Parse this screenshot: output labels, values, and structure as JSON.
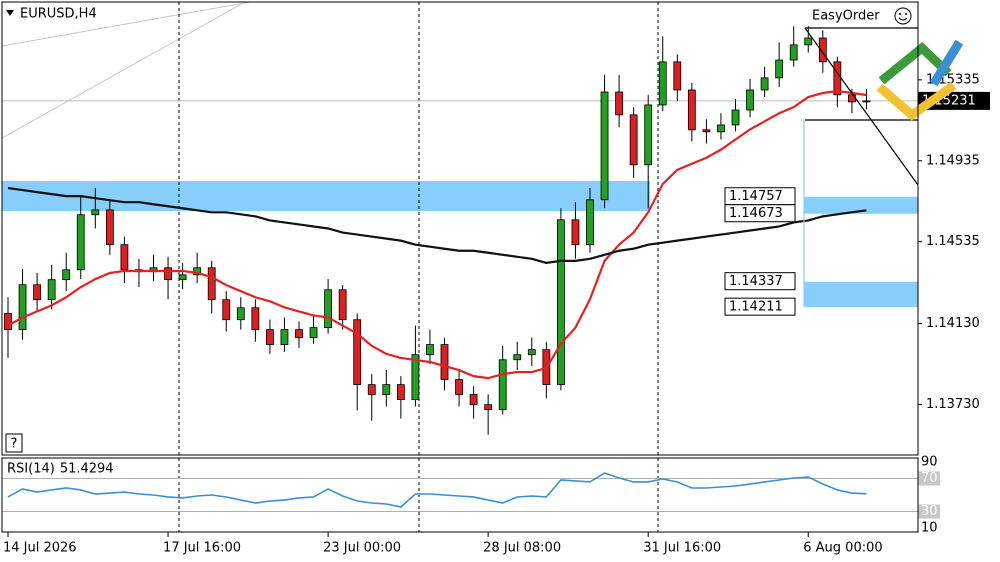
{
  "window": {
    "easy_order": "EasyOrder",
    "help": "?"
  },
  "chart_data": [
    {
      "type": "candlestick",
      "title": "EURUSD,H4",
      "categories": [
        "14 Jul 2026",
        null,
        null,
        null,
        null,
        null,
        null,
        null,
        null,
        null,
        null,
        "17 Jul 16:00",
        null,
        null,
        null,
        null,
        null,
        null,
        null,
        null,
        null,
        null,
        "23 Jul 00:00",
        null,
        null,
        null,
        null,
        null,
        null,
        null,
        null,
        null,
        null,
        "28 Jul 08:00",
        null,
        null,
        null,
        null,
        null,
        null,
        null,
        null,
        null,
        null,
        "31 Jul 16:00",
        null,
        null,
        null,
        null,
        null,
        null,
        null,
        null,
        null,
        null,
        "6 Aug 00:00",
        null,
        null,
        null,
        null
      ],
      "open": [
        1.1418,
        1.141,
        1.14322,
        1.14248,
        1.14347,
        1.14396,
        1.14668,
        1.14692,
        1.1452,
        1.14396,
        1.14386,
        1.14406,
        1.14347,
        1.14371,
        1.14406,
        1.14248,
        1.14149,
        1.14208,
        1.141,
        1.14026,
        1.141,
        1.1406,
        1.1411,
        1.14297,
        1.14149,
        1.13828,
        1.13779,
        1.13828,
        1.13754,
        1.13976,
        1.14026,
        1.13853,
        1.13779,
        1.13729,
        1.13704,
        1.13951,
        1.13976,
        1.14001,
        1.13828,
        1.14643,
        1.1452,
        1.14742,
        1.15275,
        1.15162,
        1.14915,
        1.15211,
        1.15424,
        1.15285,
        1.15088,
        1.15078,
        1.15112,
        1.15186,
        1.15285,
        1.15345,
        1.15433,
        1.15508,
        1.15542,
        1.15424,
        1.15261,
        1.15226
      ],
      "high": [
        1.1426,
        1.144,
        1.1438,
        1.1442,
        1.1448,
        1.1476,
        1.148,
        1.1474,
        1.1456,
        1.1445,
        1.1447,
        1.1446,
        1.1443,
        1.1448,
        1.1444,
        1.1429,
        1.1426,
        1.1425,
        1.1415,
        1.1416,
        1.1414,
        1.1417,
        1.1435,
        1.1432,
        1.1418,
        1.1388,
        1.139,
        1.1387,
        1.1412,
        1.141,
        1.1406,
        1.139,
        1.1382,
        1.1378,
        1.1402,
        1.1404,
        1.1406,
        1.1404,
        1.147,
        1.1473,
        1.148,
        1.1536,
        1.1536,
        1.152,
        1.1526,
        1.1555,
        1.1546,
        1.1532,
        1.1514,
        1.1517,
        1.1524,
        1.1534,
        1.154,
        1.1552,
        1.156,
        1.156,
        1.1558,
        1.1545,
        1.1529,
        1.1529
      ],
      "low": [
        1.1396,
        1.1405,
        1.1419,
        1.142,
        1.1429,
        1.1435,
        1.146,
        1.1447,
        1.1433,
        1.1431,
        1.1434,
        1.1425,
        1.143,
        1.1433,
        1.1418,
        1.1409,
        1.141,
        1.1404,
        1.1398,
        1.1399,
        1.1401,
        1.1403,
        1.1408,
        1.141,
        1.137,
        1.1365,
        1.1372,
        1.1366,
        1.1372,
        1.1393,
        1.138,
        1.1372,
        1.1366,
        1.1358,
        1.1368,
        1.139,
        1.1392,
        1.1376,
        1.138,
        1.1445,
        1.1448,
        1.147,
        1.151,
        1.1485,
        1.147,
        1.1518,
        1.1523,
        1.1503,
        1.1502,
        1.1504,
        1.1508,
        1.1515,
        1.1525,
        1.153,
        1.154,
        1.1547,
        1.1537,
        1.152,
        1.1517,
        1.1519
      ],
      "close": [
        1.141,
        1.14322,
        1.14248,
        1.14347,
        1.14396,
        1.14668,
        1.14692,
        1.1452,
        1.14396,
        1.14386,
        1.14406,
        1.14347,
        1.14371,
        1.14406,
        1.14248,
        1.14149,
        1.14208,
        1.141,
        1.14026,
        1.141,
        1.1406,
        1.1411,
        1.14297,
        1.14149,
        1.13828,
        1.13779,
        1.13828,
        1.13754,
        1.13976,
        1.14026,
        1.13853,
        1.13779,
        1.13729,
        1.13704,
        1.13951,
        1.13976,
        1.14001,
        1.13828,
        1.14643,
        1.1452,
        1.14742,
        1.15275,
        1.15162,
        1.14915,
        1.15211,
        1.15424,
        1.15285,
        1.15088,
        1.15078,
        1.15112,
        1.15186,
        1.15285,
        1.15345,
        1.15433,
        1.15508,
        1.15542,
        1.15424,
        1.15261,
        1.15226,
        1.15231
      ],
      "up_color": "#22a022",
      "down_color": "#dd1f1f",
      "series": [
        {
          "color": "#e52222",
          "values": [
            1.1412,
            1.1416,
            1.1419,
            1.1422,
            1.1426,
            1.1431,
            1.1435,
            1.1438,
            1.1439,
            1.1439,
            1.1439,
            1.1439,
            1.1439,
            1.1438,
            1.1436,
            1.1432,
            1.1429,
            1.1426,
            1.1424,
            1.1421,
            1.1419,
            1.1417,
            1.1416,
            1.1412,
            1.1408,
            1.1402,
            1.1398,
            1.1396,
            1.1395,
            1.1394,
            1.1392,
            1.139,
            1.1387,
            1.1386,
            1.1388,
            1.1389,
            1.1389,
            1.1391,
            1.1403,
            1.1411,
            1.1425,
            1.1444,
            1.1452,
            1.1458,
            1.1468,
            1.1482,
            1.1489,
            1.1492,
            1.1495,
            1.1499,
            1.1504,
            1.1509,
            1.1513,
            1.1517,
            1.152,
            1.1525,
            1.1527,
            1.1528,
            1.1527,
            1.1526
          ]
        },
        {
          "color": "#111111",
          "values": [
            1.148,
            1.1479,
            1.1478,
            1.1477,
            1.1476,
            1.1476,
            1.1475,
            1.1474,
            1.1473,
            1.1473,
            1.1472,
            1.1471,
            1.147,
            1.1469,
            1.1468,
            1.1468,
            1.1467,
            1.1466,
            1.1464,
            1.1463,
            1.1462,
            1.1461,
            1.146,
            1.1458,
            1.1457,
            1.1456,
            1.1455,
            1.1454,
            1.1452,
            1.1451,
            1.145,
            1.1449,
            1.1449,
            1.1448,
            1.1447,
            1.1446,
            1.1445,
            1.1443,
            1.1444,
            1.1444,
            1.1445,
            1.1447,
            1.1449,
            1.145,
            1.1452,
            1.1453,
            1.1454,
            1.1455,
            1.1456,
            1.1457,
            1.1458,
            1.1459,
            1.146,
            1.1461,
            1.1463,
            1.1464,
            1.1466,
            1.1467,
            1.1468,
            1.1469
          ]
        }
      ],
      "price_levels": [
        1.14757,
        1.14673,
        1.14337,
        1.14211
      ],
      "zone_color": "#87cefa",
      "ylim": [
        1.1348,
        1.1572
      ],
      "yticks": [
        1.15335,
        1.14935,
        1.14535,
        {
          "value": 1.1413,
          "label": "1.14130"
        },
        {
          "value": 1.1373,
          "label": "1.13730"
        }
      ]
    },
    {
      "type": "line",
      "title": "RSI(14)",
      "color": "#3a8fd6",
      "values": [
        47.6,
        57.3,
        53.6,
        56.1,
        58.5,
        56.1,
        51.2,
        52.4,
        53.6,
        51.2,
        50.0,
        47.6,
        46.4,
        48.8,
        50.0,
        47.6,
        43.9,
        40.3,
        42.7,
        43.9,
        46.4,
        47.6,
        57.3,
        48.8,
        42.7,
        40.3,
        39.1,
        35.5,
        51.2,
        51.2,
        50.0,
        48.8,
        47.6,
        43.9,
        40.3,
        47.6,
        48.8,
        47.6,
        68.2,
        67.0,
        65.8,
        76.7,
        70.6,
        65.8,
        65.8,
        69.4,
        65.8,
        58.5,
        58.5,
        59.7,
        60.9,
        63.3,
        65.8,
        68.2,
        70.6,
        71.8,
        63.3,
        56.1,
        52.4,
        51.4294
      ],
      "ylim": [
        10,
        90
      ],
      "yticks": [
        10,
        30,
        70,
        90
      ]
    }
  ]
}
